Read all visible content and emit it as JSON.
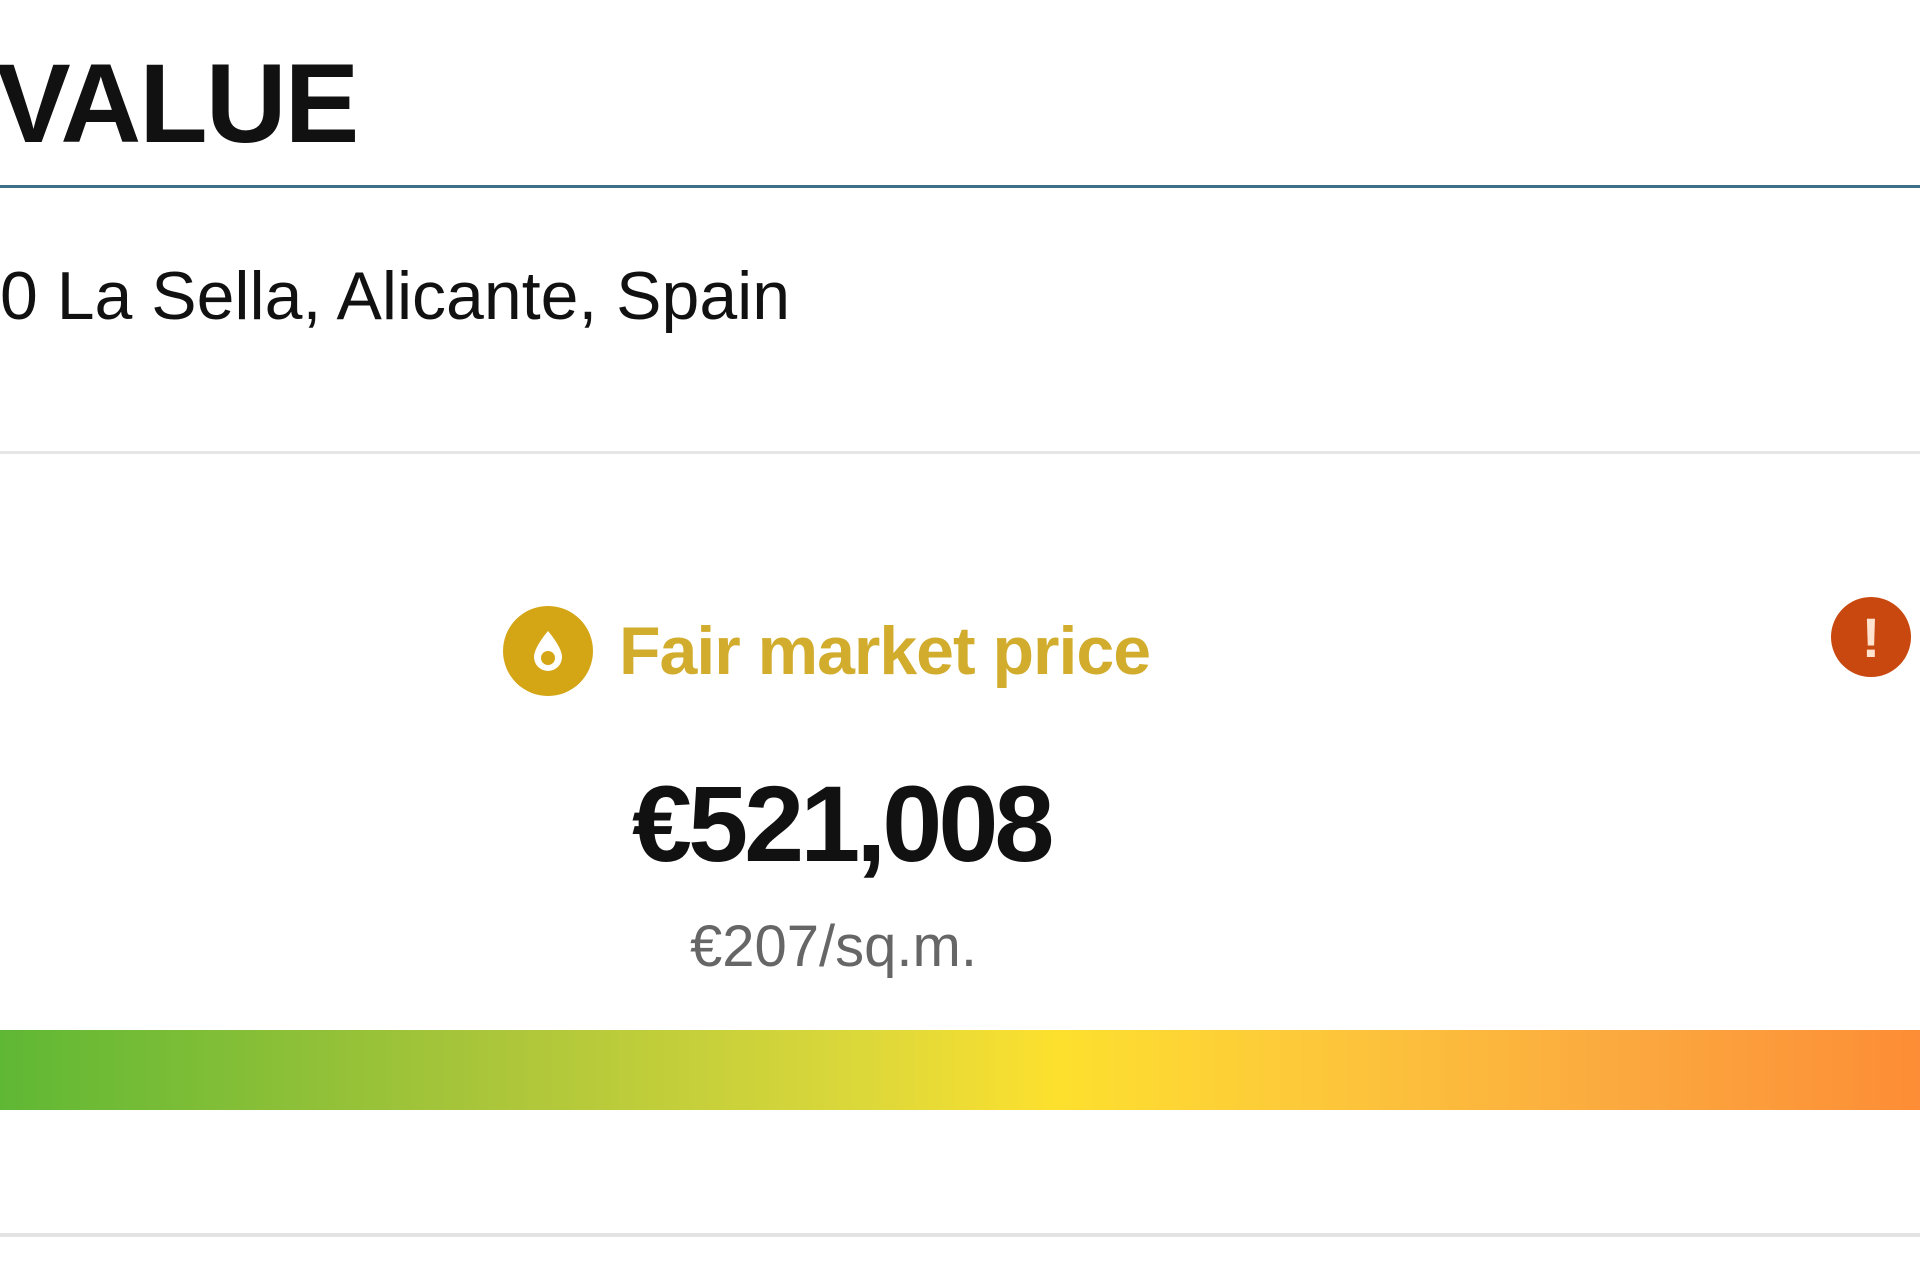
{
  "header": {
    "title": "VALUE"
  },
  "property": {
    "address": "0 La Sella, Alicante, Spain"
  },
  "valuation": {
    "status_label": "Fair market price",
    "status_icon": "fair-price-badge-icon",
    "alert_icon": "exclamation-circle-icon",
    "price": "€521,008",
    "price_per_sqm": "€207/sq.m."
  },
  "scale": {
    "colors": [
      "#5fb834",
      "#fde02e",
      "#fd8d36"
    ]
  },
  "colors": {
    "status": "#d2ac2c",
    "alert": "#c9480f",
    "title_rule": "#3f6f86"
  }
}
